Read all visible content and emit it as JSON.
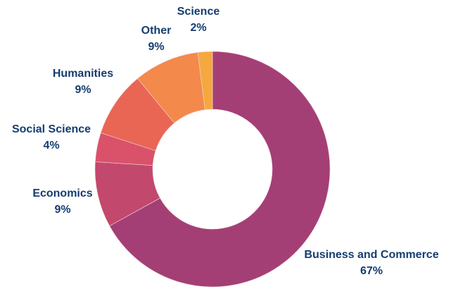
{
  "chart_data": {
    "type": "pie",
    "donut": true,
    "start": "top, clockwise",
    "slices": [
      {
        "label": "Business and Commerce",
        "value": 67,
        "value_label": "67%",
        "color": "#a43f76"
      },
      {
        "label": "Economics",
        "value": 9,
        "value_label": "9%",
        "color": "#c2486e"
      },
      {
        "label": "Social Science",
        "value": 4,
        "value_label": "4%",
        "color": "#d9526a"
      },
      {
        "label": "Humanities",
        "value": 9,
        "value_label": "9%",
        "color": "#e96655"
      },
      {
        "label": "Other",
        "value": 9,
        "value_label": "9%",
        "color": "#f3894b"
      },
      {
        "label": "Science",
        "value": 2,
        "value_label": "2%",
        "color": "#f5a83e"
      }
    ],
    "label_color": "#143d70"
  }
}
